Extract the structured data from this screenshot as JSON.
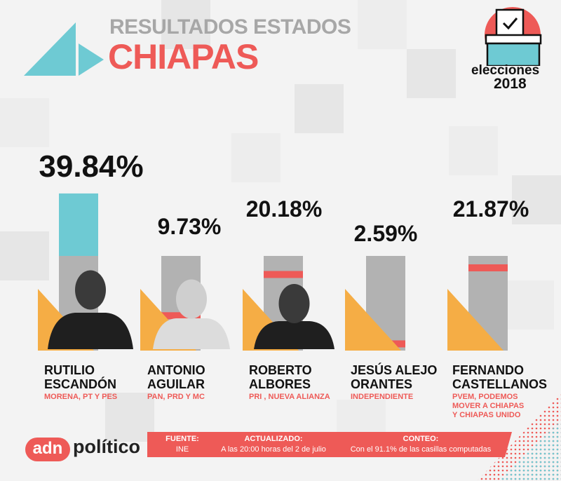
{
  "header": {
    "kicker": "RESULTADOS ESTADOS",
    "state": "CHIAPAS"
  },
  "badge": {
    "line1": "elecciones",
    "line2": "2018",
    "icon": "ballot-box-icon"
  },
  "colors": {
    "accent_red": "#ee5a57",
    "accent_teal": "#6ecad3",
    "accent_orange": "#f5ad45",
    "bar_gray": "#b2b2b2"
  },
  "chart_data": {
    "type": "bar",
    "categories": [
      "RUTILIO ESCANDÓN",
      "ANTONIO AGUILAR",
      "ROBERTO ALBORES",
      "JESÚS ALEJO ORANTES",
      "FERNANDO CASTELLANOS"
    ],
    "values": [
      39.84,
      9.73,
      20.18,
      2.59,
      21.87
    ],
    "labels": [
      "39.84%",
      "9.73%",
      "20.18%",
      "2.59%",
      "21.87%"
    ],
    "ylim": [
      0,
      40
    ]
  },
  "candidates": [
    {
      "name": "RUTILIO\nESCANDÓN",
      "party": "MORENA, PT Y PES"
    },
    {
      "name": "ANTONIO\nAGUILAR",
      "party": "PAN, PRD Y MC"
    },
    {
      "name": "ROBERTO\nALBORES",
      "party": "PRI , NUEVA ALIANZA"
    },
    {
      "name": "JESÚS ALEJO\nORANTES",
      "party": "INDEPENDIENTE"
    },
    {
      "name": "FERNANDO\nCASTELLANOS",
      "party": "PVEM, PODEMOS\nMOVER A CHIAPAS\nY CHIAPAS UNIDO"
    }
  ],
  "footer": {
    "logo_a": "adn",
    "logo_b": "político",
    "fuente_label": "FUENTE:",
    "fuente_value": "INE",
    "actualizado_label": "ACTUALIZADO:",
    "actualizado_value": "A las 20:00 horas del 2 de julio",
    "conteo_label": "CONTEO:",
    "conteo_value": "Con el 91.1% de las casillas computadas"
  }
}
